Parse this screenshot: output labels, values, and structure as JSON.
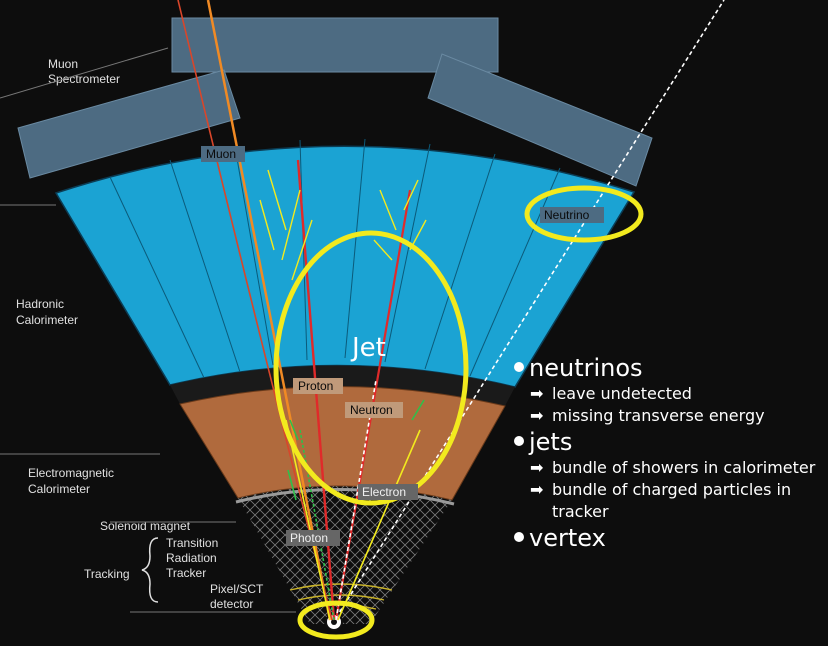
{
  "diagram": {
    "labels": {
      "muon_spectrometer": [
        "Muon",
        "Spectrometer"
      ],
      "hadronic_calorimeter": [
        "Hadronic",
        "Calorimeter"
      ],
      "em_calorimeter": [
        "Electromagnetic",
        "Calorimeter"
      ],
      "solenoid": "Solenoid magnet",
      "trt": [
        "Transition",
        "Radiation",
        "Tracker"
      ],
      "tracking": "Tracking",
      "pixel": [
        "Pixel/SCT",
        "detector"
      ]
    },
    "particles": {
      "muon": "Muon",
      "neutrino": "Neutrino",
      "proton": "Proton",
      "neutron": "Neutron",
      "electron": "Electron",
      "photon": "Photon"
    },
    "jet_label": "Jet"
  },
  "notes": [
    {
      "title": "neutrinos",
      "items": [
        "leave undetected",
        "missing transverse  energy"
      ]
    },
    {
      "title": "jets",
      "items": [
        "bundle of showers in calorimeter",
        "bundle of charged particles in tracker"
      ]
    },
    {
      "title": "vertex",
      "items": []
    }
  ],
  "colors": {
    "background": "#0d0d0d",
    "hadronic": "#1ba3d3",
    "em": "#b06a3d",
    "muon_chamber": "#4d6b82",
    "highlight": "#f2ea1e",
    "muon_track": "#f08a24"
  }
}
